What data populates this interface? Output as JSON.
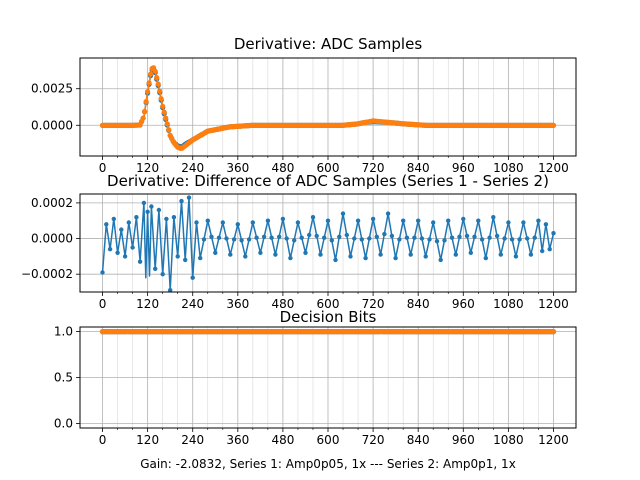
{
  "colors": {
    "series1": "#1f77b4",
    "series2": "#ff7f0e"
  },
  "footer": "Gain: -2.0832, Series 1: Amp0p05, 1x --- Series 2: Amp0p1, 1x",
  "chart_data": [
    {
      "id": "adc",
      "type": "line",
      "title": "Derivative: ADC Samples",
      "xlim": [
        -60,
        1260
      ],
      "ylim": [
        -0.0021,
        0.0046
      ],
      "xticks": [
        0,
        120,
        240,
        360,
        480,
        600,
        720,
        840,
        960,
        1080,
        1200
      ],
      "xtick_labels": [
        "0",
        "120",
        "240",
        "360",
        "480",
        "600",
        "720",
        "840",
        "960",
        "1080",
        "1200"
      ],
      "yticks": [
        0.0,
        0.0025
      ],
      "ytick_labels": [
        "0.0000",
        "0.0025"
      ],
      "grid": true,
      "series": [
        {
          "name": "Series 1",
          "color_key": "series1",
          "points": [
            [
              0,
              0
            ],
            [
              20,
              0
            ],
            [
              40,
              0
            ],
            [
              60,
              0
            ],
            [
              80,
              0
            ],
            [
              100,
              2e-05
            ],
            [
              110,
              0.0006
            ],
            [
              120,
              0.0022
            ],
            [
              130,
              0.0037
            ],
            [
              135,
              0.0039
            ],
            [
              140,
              0.0036
            ],
            [
              150,
              0.0025
            ],
            [
              160,
              0.0012
            ],
            [
              170,
              0.0002
            ],
            [
              180,
              -0.0007
            ],
            [
              190,
              -0.0012
            ],
            [
              200,
              -0.0014
            ],
            [
              210,
              -0.0015
            ],
            [
              220,
              -0.0013
            ],
            [
              240,
              -0.001
            ],
            [
              260,
              -0.0007
            ],
            [
              280,
              -0.0004
            ],
            [
              300,
              -0.0003
            ],
            [
              340,
              -0.0001
            ],
            [
              400,
              0
            ],
            [
              500,
              0
            ],
            [
              600,
              0
            ],
            [
              640,
              0
            ],
            [
              680,
              0.0001
            ],
            [
              700,
              0.0002
            ],
            [
              720,
              0.00025
            ],
            [
              760,
              0.0002
            ],
            [
              800,
              0.0001
            ],
            [
              860,
              0
            ],
            [
              960,
              0
            ],
            [
              1080,
              0
            ],
            [
              1200,
              0
            ]
          ]
        },
        {
          "name": "Series 2",
          "color_key": "series2",
          "points": [
            [
              0,
              0
            ],
            [
              20,
              0
            ],
            [
              40,
              0
            ],
            [
              60,
              0
            ],
            [
              80,
              0
            ],
            [
              100,
              2e-05
            ],
            [
              110,
              0.0006
            ],
            [
              120,
              0.0023
            ],
            [
              130,
              0.0038
            ],
            [
              135,
              0.004
            ],
            [
              140,
              0.0037
            ],
            [
              150,
              0.0026
            ],
            [
              160,
              0.0013
            ],
            [
              170,
              0.0003
            ],
            [
              180,
              -0.0007
            ],
            [
              190,
              -0.0012
            ],
            [
              200,
              -0.0015
            ],
            [
              210,
              -0.0016
            ],
            [
              220,
              -0.0014
            ],
            [
              240,
              -0.001
            ],
            [
              260,
              -0.0007
            ],
            [
              280,
              -0.0004
            ],
            [
              300,
              -0.0003
            ],
            [
              340,
              -0.0001
            ],
            [
              400,
              0
            ],
            [
              500,
              0
            ],
            [
              600,
              0
            ],
            [
              640,
              0
            ],
            [
              680,
              0.0001
            ],
            [
              700,
              0.0002
            ],
            [
              720,
              0.0003
            ],
            [
              760,
              0.0002
            ],
            [
              800,
              0.0001
            ],
            [
              860,
              0
            ],
            [
              960,
              0
            ],
            [
              1080,
              0
            ],
            [
              1200,
              0
            ]
          ]
        }
      ]
    },
    {
      "id": "diff",
      "type": "line",
      "title": "Derivative: Difference of ADC Samples (Series 1 - Series 2)",
      "xlim": [
        -60,
        1260
      ],
      "ylim": [
        -0.0003,
        0.00025
      ],
      "xticks": [
        0,
        120,
        240,
        360,
        480,
        600,
        720,
        840,
        960,
        1080,
        1200
      ],
      "xtick_labels": [
        "0",
        "120",
        "240",
        "360",
        "480",
        "600",
        "720",
        "840",
        "960",
        "1080",
        "1200"
      ],
      "yticks": [
        -0.0002,
        0.0,
        0.0002
      ],
      "ytick_labels": [
        "−0.0002",
        "0.0000",
        "0.0002"
      ],
      "grid": true,
      "series": [
        {
          "name": "Series 1 - Series 2",
          "color_key": "series1",
          "points": [
            [
              0,
              -0.00019
            ],
            [
              10,
              8e-05
            ],
            [
              20,
              -6e-05
            ],
            [
              30,
              0.00011
            ],
            [
              40,
              -8e-05
            ],
            [
              50,
              5e-05
            ],
            [
              60,
              -0.0001
            ],
            [
              70,
              9e-05
            ],
            [
              80,
              -5e-05
            ],
            [
              90,
              0.00012
            ],
            [
              100,
              -0.00013
            ],
            [
              110,
              0.0002
            ],
            [
              115,
              -0.00022
            ],
            [
              120,
              0.00015
            ],
            [
              125,
              -0.00021
            ],
            [
              130,
              0.00018
            ],
            [
              140,
              -0.00017
            ],
            [
              150,
              0.00016
            ],
            [
              160,
              -0.0002
            ],
            [
              170,
              0.00011
            ],
            [
              180,
              -0.00029
            ],
            [
              190,
              0.00012
            ],
            [
              200,
              -0.0001
            ],
            [
              210,
              0.00021
            ],
            [
              220,
              -0.00012
            ],
            [
              230,
              0.00023
            ],
            [
              240,
              -0.00022
            ],
            [
              250,
              9e-05
            ],
            [
              260,
              -0.00011
            ],
            [
              280,
              0.0001
            ],
            [
              300,
              -8e-05
            ],
            [
              320,
              9e-05
            ],
            [
              340,
              -9e-05
            ],
            [
              360,
              8e-05
            ],
            [
              380,
              -0.0001
            ],
            [
              400,
              9e-05
            ],
            [
              420,
              -8e-05
            ],
            [
              440,
              0.0001
            ],
            [
              460,
              -9e-05
            ],
            [
              480,
              0.00011
            ],
            [
              500,
              -0.00011
            ],
            [
              520,
              9e-05
            ],
            [
              540,
              -8e-05
            ],
            [
              560,
              0.00012
            ],
            [
              580,
              -9e-05
            ],
            [
              600,
              0.0001
            ],
            [
              620,
              -0.00012
            ],
            [
              640,
              0.00014
            ],
            [
              660,
              -0.0001
            ],
            [
              680,
              0.0001
            ],
            [
              700,
              -0.00011
            ],
            [
              720,
              0.00011
            ],
            [
              740,
              -9e-05
            ],
            [
              760,
              0.00014
            ],
            [
              780,
              -0.00011
            ],
            [
              800,
              0.0001
            ],
            [
              820,
              -9e-05
            ],
            [
              840,
              0.0001
            ],
            [
              860,
              -0.0001
            ],
            [
              880,
              9e-05
            ],
            [
              900,
              -0.00012
            ],
            [
              920,
              0.0001
            ],
            [
              940,
              -9e-05
            ],
            [
              960,
              0.00011
            ],
            [
              980,
              -8e-05
            ],
            [
              1000,
              0.0001
            ],
            [
              1020,
              -0.00011
            ],
            [
              1040,
              0.00012
            ],
            [
              1060,
              -9e-05
            ],
            [
              1080,
              9e-05
            ],
            [
              1100,
              -0.0001
            ],
            [
              1120,
              9e-05
            ],
            [
              1140,
              -9e-05
            ],
            [
              1160,
              0.0001
            ],
            [
              1170,
              -7e-05
            ],
            [
              1180,
              8e-05
            ],
            [
              1190,
              -6e-05
            ],
            [
              1200,
              3e-05
            ]
          ]
        }
      ]
    },
    {
      "id": "bits",
      "type": "line",
      "title": "Decision Bits",
      "xlim": [
        -60,
        1260
      ],
      "ylim": [
        -0.05,
        1.05
      ],
      "xticks": [
        0,
        120,
        240,
        360,
        480,
        600,
        720,
        840,
        960,
        1080,
        1200
      ],
      "xtick_labels": [
        "0",
        "120",
        "240",
        "360",
        "480",
        "600",
        "720",
        "840",
        "960",
        "1080",
        "1200"
      ],
      "yticks": [
        0.0,
        0.5,
        1.0
      ],
      "ytick_labels": [
        "0.0",
        "0.5",
        "1.0"
      ],
      "grid": true,
      "series": [
        {
          "name": "Series 1",
          "color_key": "series1",
          "points": [
            [
              0,
              1
            ],
            [
              1200,
              1
            ]
          ]
        },
        {
          "name": "Series 2",
          "color_key": "series2",
          "points": [
            [
              0,
              1
            ],
            [
              1200,
              1
            ]
          ]
        }
      ]
    }
  ]
}
